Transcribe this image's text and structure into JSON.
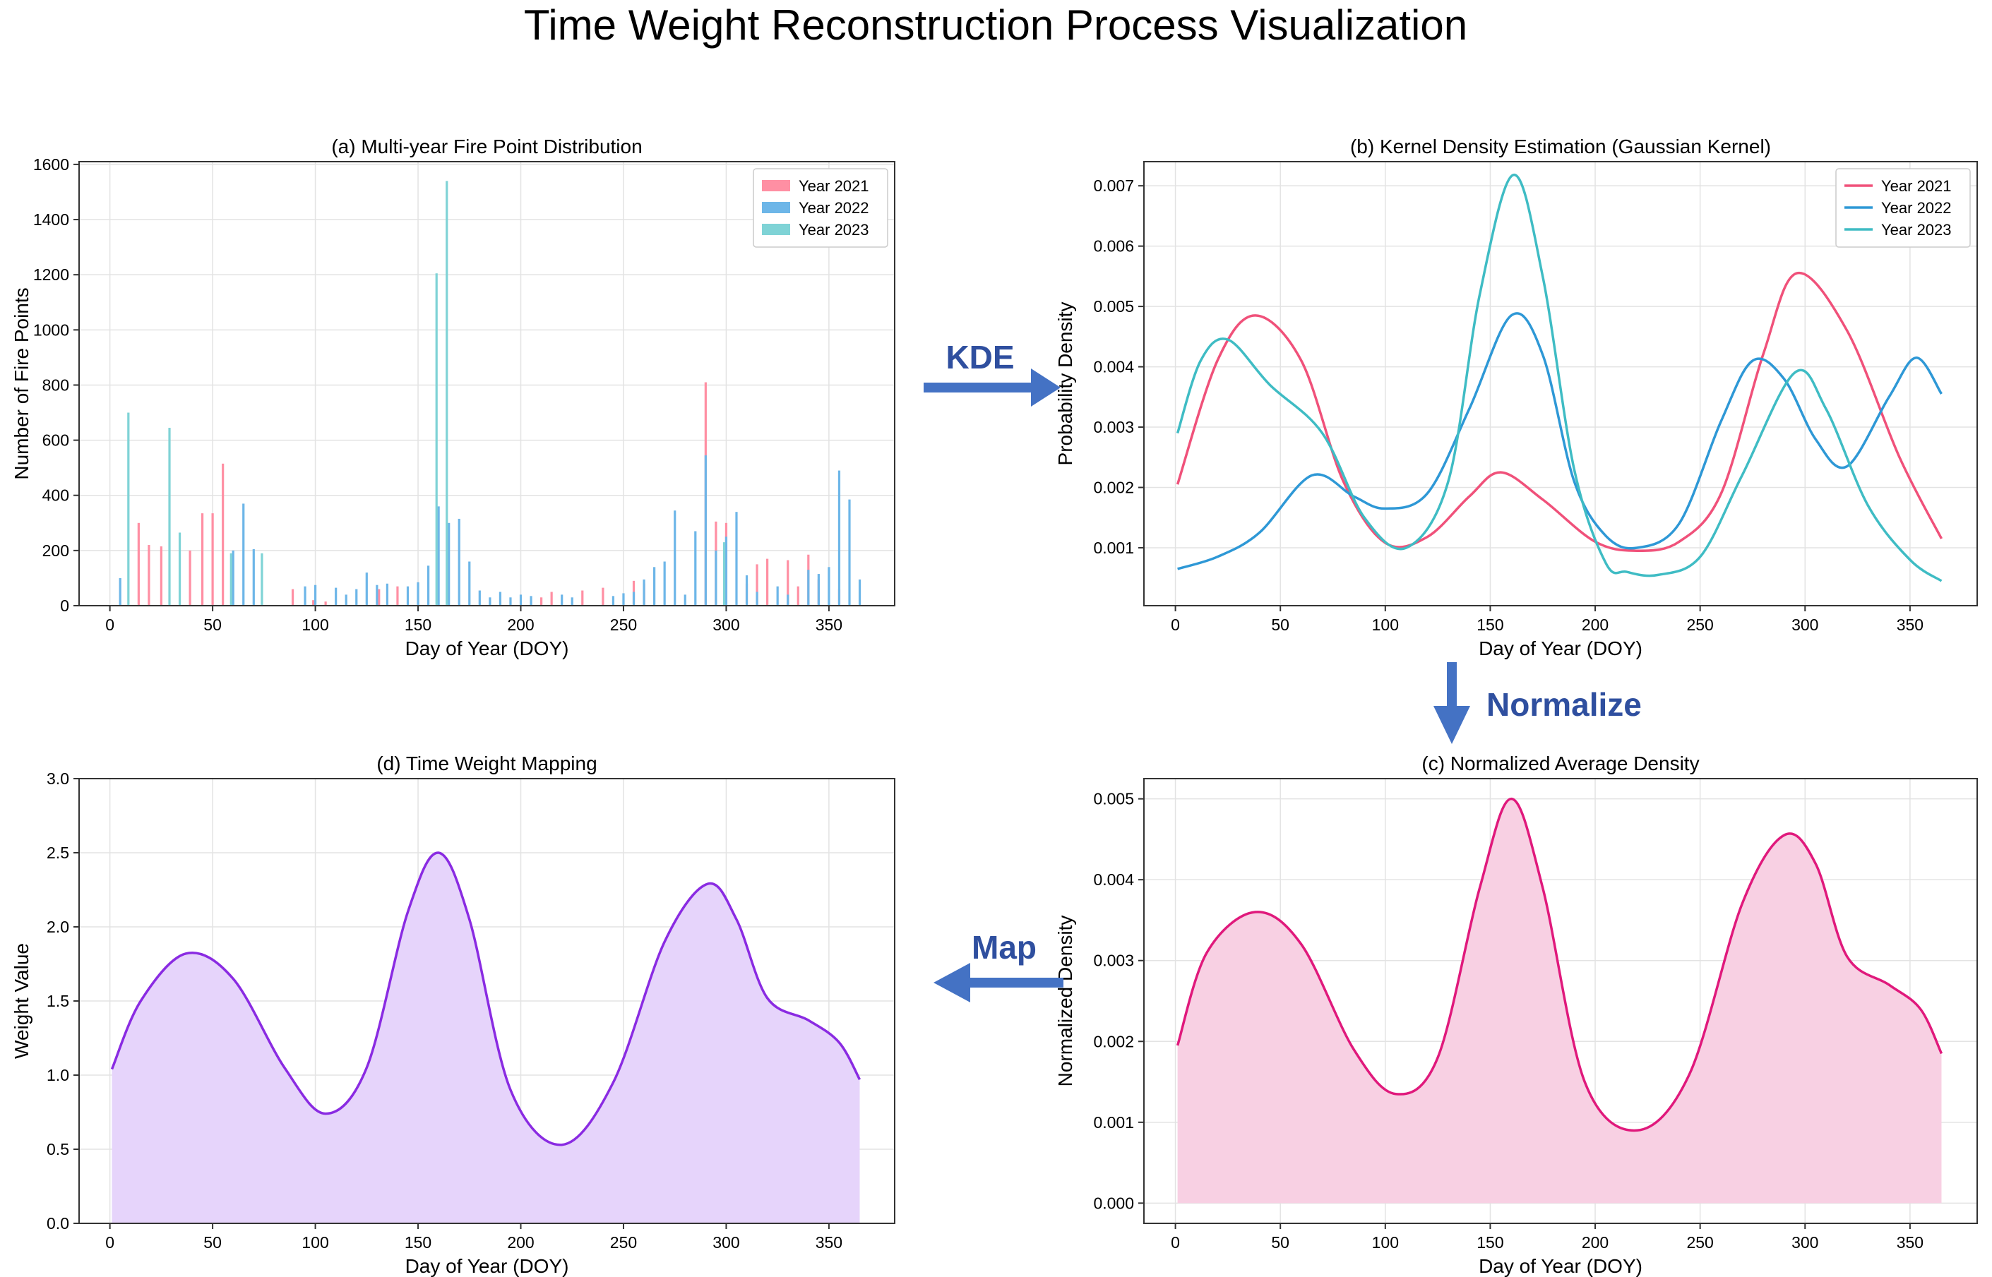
{
  "figure_title": "Time Weight Reconstruction Process Visualization",
  "arrows": {
    "kde": "KDE",
    "normalize": "Normalize",
    "map": "Map",
    "color": "#4472c4",
    "text_color": "#2f4f9f"
  },
  "chart_data": [
    {
      "id": "a",
      "type": "bar",
      "title": "(a) Multi-year Fire Point Distribution",
      "xlabel": "Day of Year (DOY)",
      "ylabel": "Number of Fire Points",
      "xlim": [
        -15,
        382
      ],
      "ylim": [
        0,
        1610
      ],
      "xticks": [
        0,
        50,
        100,
        150,
        200,
        250,
        300,
        350
      ],
      "yticks": [
        0,
        200,
        400,
        600,
        800,
        1000,
        1200,
        1400,
        1600
      ],
      "grid": true,
      "legend": "top-right",
      "series": [
        {
          "name": "Year 2021",
          "color": "#ff8fa3",
          "points": [
            [
              14,
              300
            ],
            [
              19,
              220
            ],
            [
              25,
              215
            ],
            [
              39,
              200
            ],
            [
              45,
              335
            ],
            [
              50,
              335
            ],
            [
              55,
              515
            ],
            [
              89,
              60
            ],
            [
              99,
              20
            ],
            [
              105,
              15
            ],
            [
              131,
              60
            ],
            [
              140,
              70
            ],
            [
              210,
              30
            ],
            [
              215,
              50
            ],
            [
              230,
              55
            ],
            [
              240,
              65
            ],
            [
              255,
              90
            ],
            [
              260,
              80
            ],
            [
              290,
              810
            ],
            [
              295,
              305
            ],
            [
              300,
              300
            ],
            [
              310,
              80
            ],
            [
              315,
              150
            ],
            [
              320,
              170
            ],
            [
              330,
              165
            ],
            [
              335,
              70
            ],
            [
              340,
              185
            ],
            [
              345,
              95
            ],
            [
              355,
              60
            ]
          ]
        },
        {
          "name": "Year 2022",
          "color": "#6db6e8",
          "points": [
            [
              5,
              100
            ],
            [
              60,
              200
            ],
            [
              65,
              370
            ],
            [
              70,
              205
            ],
            [
              95,
              70
            ],
            [
              100,
              75
            ],
            [
              110,
              65
            ],
            [
              115,
              40
            ],
            [
              120,
              60
            ],
            [
              125,
              120
            ],
            [
              130,
              75
            ],
            [
              135,
              80
            ],
            [
              145,
              70
            ],
            [
              150,
              85
            ],
            [
              155,
              145
            ],
            [
              160,
              360
            ],
            [
              165,
              300
            ],
            [
              170,
              315
            ],
            [
              175,
              160
            ],
            [
              180,
              55
            ],
            [
              185,
              30
            ],
            [
              190,
              50
            ],
            [
              195,
              30
            ],
            [
              200,
              40
            ],
            [
              205,
              35
            ],
            [
              220,
              40
            ],
            [
              225,
              30
            ],
            [
              245,
              35
            ],
            [
              250,
              45
            ],
            [
              255,
              50
            ],
            [
              260,
              95
            ],
            [
              265,
              140
            ],
            [
              270,
              160
            ],
            [
              275,
              345
            ],
            [
              280,
              40
            ],
            [
              285,
              270
            ],
            [
              290,
              545
            ],
            [
              295,
              200
            ],
            [
              300,
              250
            ],
            [
              305,
              340
            ],
            [
              310,
              110
            ],
            [
              315,
              50
            ],
            [
              325,
              70
            ],
            [
              330,
              40
            ],
            [
              340,
              130
            ],
            [
              345,
              115
            ],
            [
              350,
              140
            ],
            [
              355,
              490
            ],
            [
              360,
              385
            ],
            [
              365,
              95
            ]
          ]
        },
        {
          "name": "Year 2023",
          "color": "#7fd3d6",
          "points": [
            [
              9,
              700
            ],
            [
              29,
              645
            ],
            [
              34,
              265
            ],
            [
              59,
              190
            ],
            [
              74,
              190
            ],
            [
              159,
              1205
            ],
            [
              164,
              1540
            ],
            [
              299,
              230
            ]
          ]
        }
      ]
    },
    {
      "id": "b",
      "type": "line",
      "title": "(b) Kernel Density Estimation (Gaussian Kernel)",
      "xlabel": "Day of Year (DOY)",
      "ylabel": "Probability Density",
      "xlim": [
        -15,
        382
      ],
      "ylim": [
        4e-05,
        0.0074
      ],
      "xticks": [
        0,
        50,
        100,
        150,
        200,
        250,
        300,
        350
      ],
      "yticks": [
        0.001,
        0.002,
        0.003,
        0.004,
        0.005,
        0.006,
        0.007
      ],
      "ytick_labels": [
        "0.001",
        "0.002",
        "0.003",
        "0.004",
        "0.005",
        "0.006",
        "0.007"
      ],
      "grid": true,
      "legend": "top-right",
      "series": [
        {
          "name": "Year 2021",
          "color": "#f0517a",
          "x": [
            1,
            20,
            38,
            60,
            80,
            100,
            120,
            140,
            155,
            175,
            200,
            220,
            240,
            260,
            280,
            296,
            320,
            345,
            365
          ],
          "y": [
            0.00205,
            0.0041,
            0.00485,
            0.0041,
            0.0021,
            0.00108,
            0.00118,
            0.00185,
            0.00225,
            0.0018,
            0.0011,
            0.00095,
            0.0011,
            0.0019,
            0.0042,
            0.00555,
            0.0046,
            0.0025,
            0.00115
          ]
        },
        {
          "name": "Year 2022",
          "color": "#2e98d6",
          "x": [
            1,
            20,
            40,
            65,
            85,
            100,
            120,
            140,
            160,
            175,
            190,
            205,
            220,
            240,
            260,
            275,
            290,
            305,
            320,
            340,
            353,
            365
          ],
          "y": [
            0.00065,
            0.00085,
            0.00125,
            0.0022,
            0.00185,
            0.00165,
            0.0019,
            0.0033,
            0.00485,
            0.0042,
            0.0021,
            0.0012,
            0.001,
            0.0014,
            0.0031,
            0.0041,
            0.0038,
            0.0028,
            0.00235,
            0.0035,
            0.00415,
            0.00355
          ]
        },
        {
          "name": "Year 2023",
          "color": "#3fbcc4",
          "x": [
            1,
            12,
            25,
            45,
            70,
            90,
            110,
            130,
            145,
            161,
            175,
            190,
            205,
            215,
            230,
            250,
            270,
            295,
            310,
            330,
            350,
            365
          ],
          "y": [
            0.0029,
            0.0041,
            0.00445,
            0.0037,
            0.0029,
            0.0015,
            0.001,
            0.0021,
            0.0052,
            0.00718,
            0.0055,
            0.0023,
            0.00075,
            0.0006,
            0.00055,
            0.00085,
            0.0022,
            0.0039,
            0.0033,
            0.0017,
            0.0008,
            0.00045
          ]
        }
      ]
    },
    {
      "id": "c",
      "type": "area",
      "title": "(c) Normalized Average Density",
      "xlabel": "Day of Year (DOY)",
      "ylabel": "Normalized Density",
      "xlim": [
        -15,
        382
      ],
      "ylim": [
        -0.00025,
        0.00525
      ],
      "xticks": [
        0,
        50,
        100,
        150,
        200,
        250,
        300,
        350
      ],
      "yticks": [
        0,
        0.001,
        0.002,
        0.003,
        0.004,
        0.005
      ],
      "ytick_labels": [
        "0.000",
        "0.001",
        "0.002",
        "0.003",
        "0.004",
        "0.005"
      ],
      "grid": true,
      "series": [
        {
          "name": "Normalized Average Density",
          "color": "#e0197c",
          "fill": "#f8d0e3",
          "x": [
            1,
            15,
            38,
            60,
            85,
            105,
            125,
            145,
            160,
            175,
            195,
            220,
            245,
            270,
            290,
            305,
            320,
            340,
            355,
            365
          ],
          "y": [
            0.00195,
            0.0031,
            0.0036,
            0.0032,
            0.0019,
            0.00135,
            0.0018,
            0.0039,
            0.005,
            0.0039,
            0.0015,
            0.0009,
            0.0016,
            0.0037,
            0.00455,
            0.0042,
            0.00305,
            0.0027,
            0.0024,
            0.00185
          ]
        }
      ]
    },
    {
      "id": "d",
      "type": "area",
      "title": "(d) Time Weight Mapping",
      "xlabel": "Day of Year (DOY)",
      "ylabel": "Weight Value",
      "xlim": [
        -15,
        382
      ],
      "ylim": [
        0,
        3.0
      ],
      "xticks": [
        0,
        50,
        100,
        150,
        200,
        250,
        300,
        350
      ],
      "yticks": [
        0,
        0.5,
        1.0,
        1.5,
        2.0,
        2.5,
        3.0
      ],
      "ytick_labels": [
        "0.0",
        "0.5",
        "1.0",
        "1.5",
        "2.0",
        "2.5",
        "3.0"
      ],
      "grid": true,
      "series": [
        {
          "name": "Time Weight",
          "color": "#8a2be2",
          "fill": "#e6d4fb",
          "x": [
            1,
            15,
            37,
            60,
            85,
            105,
            125,
            145,
            160,
            175,
            195,
            220,
            245,
            270,
            291,
            305,
            320,
            340,
            355,
            365
          ],
          "y": [
            1.04,
            1.5,
            1.82,
            1.65,
            1.05,
            0.74,
            1.05,
            2.1,
            2.5,
            2.05,
            0.9,
            0.53,
            0.95,
            1.9,
            2.29,
            2.05,
            1.52,
            1.37,
            1.22,
            0.97
          ]
        }
      ]
    }
  ]
}
